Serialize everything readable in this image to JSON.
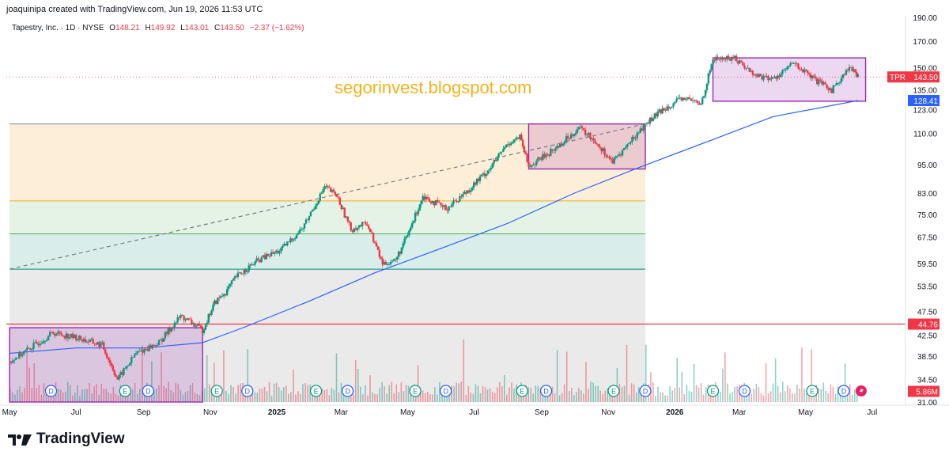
{
  "header": {
    "created_by": "joaquinipa created with TradingView.com, Jun 19, 2026 11:53 UTC"
  },
  "legend": {
    "symbol": "Tapestry, Inc. · 1D · NYSE",
    "open_label": "O",
    "open": "148.21",
    "high_label": "H",
    "high": "149.92",
    "low_label": "L",
    "low": "143.01",
    "close_label": "C",
    "close": "143.50",
    "change": "−2.37 (−1.62%)"
  },
  "watermark": "segorinvest.blogspot.com",
  "brand": {
    "name": "TradingView",
    "icon": "tradingview-logo-icon"
  },
  "colors": {
    "up": "#089981",
    "down": "#f23645",
    "ma": "#2962ff",
    "box": "#9c27b0",
    "hline": "#f23645",
    "fib_orange": "#f5a623",
    "fib_green": "#4caf50",
    "fib_teal": "#00897b",
    "fib_gray": "#9e9e9e"
  },
  "chart_data": {
    "type": "candlestick",
    "symbol": "TPR",
    "x_tick_labels": [
      "May",
      "Jul",
      "Sep",
      "Nov",
      "2025",
      "Mar",
      "May",
      "Jul",
      "Sep",
      "Nov",
      "2026",
      "Mar",
      "May",
      "Jul"
    ],
    "y_tick_labels": [
      "190.00",
      "170.00",
      "150.00",
      "135.00",
      "123.00",
      "110.00",
      "95.00",
      "83.00",
      "75.00",
      "67.50",
      "59.50",
      "53.50",
      "47.50",
      "42.50",
      "38.50",
      "34.50",
      "31.00"
    ],
    "y_scale": "log",
    "ylim": [
      31.0,
      190.0
    ],
    "price_series": [
      {
        "date": "2024-05-01",
        "price": 37.5
      },
      {
        "date": "2024-05-20",
        "price": 40.0
      },
      {
        "date": "2024-06-10",
        "price": 43.0
      },
      {
        "date": "2024-07-01",
        "price": 42.0
      },
      {
        "date": "2024-07-25",
        "price": 40.5
      },
      {
        "date": "2024-08-08",
        "price": 34.5
      },
      {
        "date": "2024-08-25",
        "price": 39.0
      },
      {
        "date": "2024-09-15",
        "price": 41.0
      },
      {
        "date": "2024-10-05",
        "price": 46.5
      },
      {
        "date": "2024-10-25",
        "price": 43.5
      },
      {
        "date": "2024-11-05",
        "price": 49.5
      },
      {
        "date": "2024-11-15",
        "price": 52.0
      },
      {
        "date": "2024-11-25",
        "price": 56.0
      },
      {
        "date": "2024-12-15",
        "price": 60.5
      },
      {
        "date": "2025-01-05",
        "price": 63.5
      },
      {
        "date": "2025-01-25",
        "price": 70.5
      },
      {
        "date": "2025-02-14",
        "price": 85.5
      },
      {
        "date": "2025-02-25",
        "price": 82.0
      },
      {
        "date": "2025-03-10",
        "price": 70.0
      },
      {
        "date": "2025-03-25",
        "price": 72.0
      },
      {
        "date": "2025-04-08",
        "price": 59.5
      },
      {
        "date": "2025-04-20",
        "price": 60.5
      },
      {
        "date": "2025-05-01",
        "price": 68.0
      },
      {
        "date": "2025-05-15",
        "price": 82.0
      },
      {
        "date": "2025-06-05",
        "price": 77.0
      },
      {
        "date": "2025-06-25",
        "price": 84.0
      },
      {
        "date": "2025-07-15",
        "price": 93.0
      },
      {
        "date": "2025-08-01",
        "price": 105.0
      },
      {
        "date": "2025-08-12",
        "price": 108.0
      },
      {
        "date": "2025-08-20",
        "price": 94.0
      },
      {
        "date": "2025-09-15",
        "price": 103.0
      },
      {
        "date": "2025-10-05",
        "price": 113.0
      },
      {
        "date": "2025-10-20",
        "price": 106.0
      },
      {
        "date": "2025-11-05",
        "price": 96.0
      },
      {
        "date": "2025-11-20",
        "price": 105.0
      },
      {
        "date": "2025-12-05",
        "price": 115.0
      },
      {
        "date": "2025-12-25",
        "price": 125.0
      },
      {
        "date": "2026-01-10",
        "price": 130.0
      },
      {
        "date": "2026-01-25",
        "price": 126.0
      },
      {
        "date": "2026-02-05",
        "price": 156.0
      },
      {
        "date": "2026-02-25",
        "price": 157.0
      },
      {
        "date": "2026-03-15",
        "price": 145.0
      },
      {
        "date": "2026-04-01",
        "price": 142.0
      },
      {
        "date": "2026-04-20",
        "price": 153.0
      },
      {
        "date": "2026-05-10",
        "price": 141.0
      },
      {
        "date": "2026-05-25",
        "price": 135.0
      },
      {
        "date": "2026-06-10",
        "price": 150.0
      },
      {
        "date": "2026-06-18",
        "price": 143.5
      }
    ],
    "ma_series": [
      {
        "date": "2024-05-01",
        "price": 39.0
      },
      {
        "date": "2024-07-01",
        "price": 40.0
      },
      {
        "date": "2024-09-01",
        "price": 40.0
      },
      {
        "date": "2024-10-25",
        "price": 41.0
      },
      {
        "date": "2024-12-01",
        "price": 44.0
      },
      {
        "date": "2025-02-01",
        "price": 50.0
      },
      {
        "date": "2025-04-01",
        "price": 57.0
      },
      {
        "date": "2025-06-01",
        "price": 64.0
      },
      {
        "date": "2025-08-01",
        "price": 72.0
      },
      {
        "date": "2025-10-01",
        "price": 83.0
      },
      {
        "date": "2025-12-01",
        "price": 94.0
      },
      {
        "date": "2026-02-01",
        "price": 106.0
      },
      {
        "date": "2026-04-01",
        "price": 119.0
      },
      {
        "date": "2026-06-18",
        "price": 128.41
      }
    ],
    "horizontal_lines": [
      {
        "label": "44.76",
        "price": 44.76,
        "color": "#f23645"
      }
    ],
    "fib_levels": [
      115.0,
      80.0,
      68.5,
      58.0
    ],
    "trendline": {
      "from": {
        "date": "2024-05-01",
        "price": 58.0
      },
      "to": {
        "date": "2025-12-05",
        "price": 115.0
      }
    },
    "rectangles": [
      {
        "from_date": "2024-05-01",
        "to_date": "2024-10-25",
        "top": 44.0,
        "bottom": 31.0
      },
      {
        "from_date": "2025-08-20",
        "to_date": "2025-12-05",
        "top": 115.0,
        "bottom": 93.0
      },
      {
        "from_date": "2026-02-05",
        "to_date": "2026-06-25",
        "top": 157.0,
        "bottom": 128.0
      }
    ],
    "price_labels": [
      {
        "text": "TPR",
        "value": "143.50",
        "price": 143.5
      },
      {
        "text": "",
        "value": "128.41",
        "price": 128.41
      },
      {
        "text": "",
        "value": "44.76",
        "price": 44.76
      },
      {
        "text": "",
        "value": "5.86M",
        "price": 32.6
      }
    ],
    "event_markers": [
      {
        "kind": "D",
        "date": "2024-06-08"
      },
      {
        "kind": "E",
        "date": "2024-08-15"
      },
      {
        "kind": "D",
        "date": "2024-09-05"
      },
      {
        "kind": "E",
        "date": "2024-11-07"
      },
      {
        "kind": "D",
        "date": "2024-12-05"
      },
      {
        "kind": "E",
        "date": "2025-02-06"
      },
      {
        "kind": "D",
        "date": "2025-03-07"
      },
      {
        "kind": "E",
        "date": "2025-05-08"
      },
      {
        "kind": "D",
        "date": "2025-06-05"
      },
      {
        "kind": "E",
        "date": "2025-08-14"
      },
      {
        "kind": "D",
        "date": "2025-09-05"
      },
      {
        "kind": "E",
        "date": "2025-11-06"
      },
      {
        "kind": "D",
        "date": "2025-12-05"
      },
      {
        "kind": "E",
        "date": "2026-02-05"
      },
      {
        "kind": "D",
        "date": "2026-03-06"
      },
      {
        "kind": "E",
        "date": "2026-05-07"
      },
      {
        "kind": "D",
        "date": "2026-06-05"
      }
    ],
    "volume_scale_note": "volume histogram at bottom (unlabeled)"
  }
}
